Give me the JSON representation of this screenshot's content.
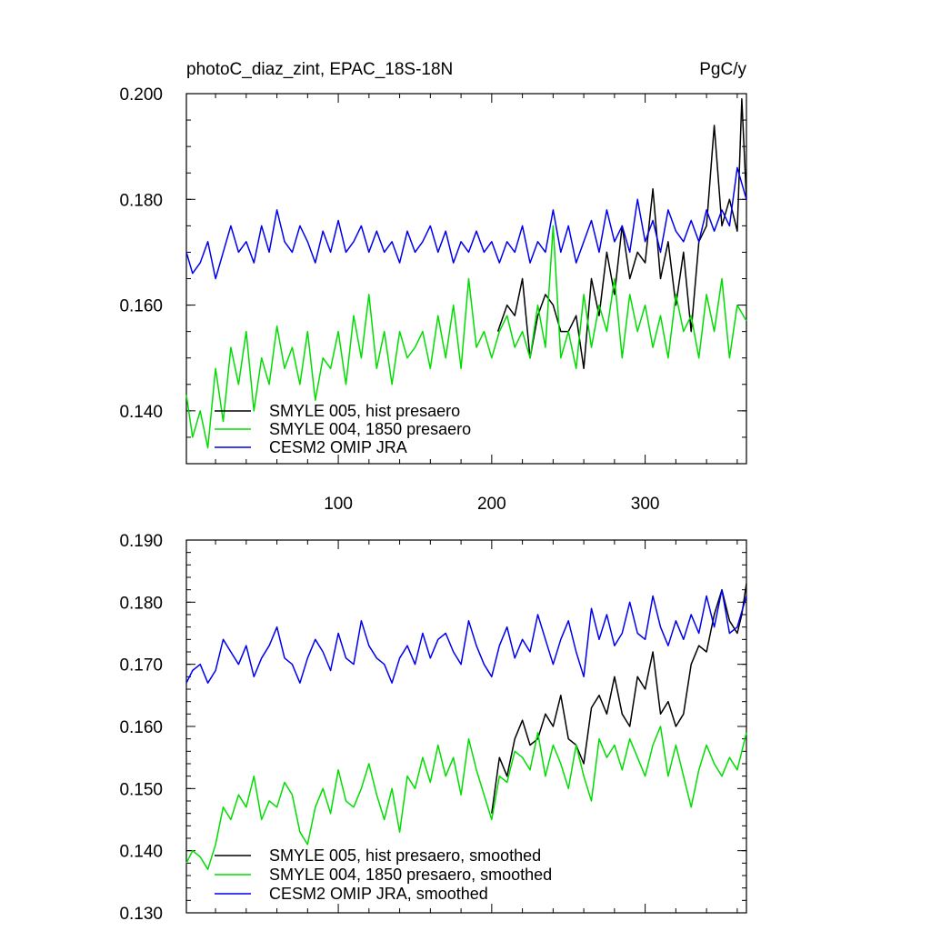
{
  "chart_data": [
    {
      "type": "line",
      "title": "photoC_diaz_zint, EPAC_18S-18N",
      "units": "PgC/y",
      "xlim": [
        1,
        366
      ],
      "ylim": [
        0.13,
        0.2
      ],
      "xticks": [
        100,
        200,
        300
      ],
      "xtick_labels": [
        "100",
        "200",
        "300"
      ],
      "yticks": [
        0.14,
        0.16,
        0.18,
        0.2
      ],
      "ytick_labels": [
        "0.140",
        "0.160",
        "0.180",
        "0.200"
      ],
      "legend_position": "bottom-left",
      "grid": false,
      "series": [
        {
          "name": "SMYLE 005, hist presaero",
          "color": "#000000",
          "x": [
            204,
            210,
            215,
            220,
            225,
            230,
            235,
            240,
            245,
            250,
            255,
            260,
            265,
            270,
            275,
            280,
            285,
            290,
            295,
            300,
            305,
            310,
            315,
            320,
            325,
            330,
            335,
            340,
            345,
            350,
            355,
            360,
            363,
            366
          ],
          "values": [
            0.155,
            0.16,
            0.158,
            0.165,
            0.15,
            0.158,
            0.162,
            0.16,
            0.155,
            0.155,
            0.158,
            0.148,
            0.165,
            0.158,
            0.17,
            0.162,
            0.175,
            0.165,
            0.17,
            0.168,
            0.182,
            0.165,
            0.172,
            0.16,
            0.17,
            0.155,
            0.172,
            0.175,
            0.194,
            0.175,
            0.18,
            0.174,
            0.199,
            0.18
          ]
        },
        {
          "name": "SMYLE 004, 1850 presaero",
          "color": "#00dd00",
          "x": [
            1,
            5,
            10,
            15,
            20,
            25,
            30,
            35,
            40,
            45,
            50,
            55,
            60,
            65,
            70,
            75,
            80,
            85,
            90,
            95,
            100,
            105,
            110,
            115,
            120,
            125,
            130,
            135,
            140,
            145,
            150,
            155,
            160,
            165,
            170,
            175,
            180,
            185,
            190,
            195,
            200,
            205,
            210,
            215,
            220,
            225,
            230,
            235,
            240,
            245,
            250,
            255,
            260,
            265,
            270,
            275,
            280,
            285,
            290,
            295,
            300,
            305,
            310,
            315,
            320,
            325,
            330,
            335,
            340,
            345,
            350,
            355,
            360,
            366
          ],
          "values": [
            0.143,
            0.135,
            0.14,
            0.133,
            0.148,
            0.138,
            0.152,
            0.145,
            0.155,
            0.14,
            0.15,
            0.145,
            0.156,
            0.148,
            0.152,
            0.145,
            0.155,
            0.142,
            0.15,
            0.148,
            0.155,
            0.145,
            0.158,
            0.15,
            0.162,
            0.148,
            0.155,
            0.145,
            0.155,
            0.15,
            0.152,
            0.155,
            0.148,
            0.158,
            0.15,
            0.16,
            0.148,
            0.165,
            0.152,
            0.155,
            0.15,
            0.155,
            0.158,
            0.152,
            0.155,
            0.15,
            0.16,
            0.152,
            0.175,
            0.15,
            0.155,
            0.148,
            0.162,
            0.152,
            0.16,
            0.155,
            0.165,
            0.15,
            0.162,
            0.155,
            0.16,
            0.152,
            0.158,
            0.15,
            0.162,
            0.155,
            0.158,
            0.15,
            0.162,
            0.155,
            0.165,
            0.15,
            0.16,
            0.157
          ]
        },
        {
          "name": "CESM2 OMIP JRA",
          "color": "#0000ee",
          "x": [
            1,
            5,
            10,
            15,
            20,
            25,
            30,
            35,
            40,
            45,
            50,
            55,
            60,
            65,
            70,
            75,
            80,
            85,
            90,
            95,
            100,
            105,
            110,
            115,
            120,
            125,
            130,
            135,
            140,
            145,
            150,
            155,
            160,
            165,
            170,
            175,
            180,
            185,
            190,
            195,
            200,
            205,
            210,
            215,
            220,
            225,
            230,
            235,
            240,
            245,
            250,
            255,
            260,
            265,
            270,
            275,
            280,
            285,
            290,
            295,
            300,
            305,
            310,
            315,
            320,
            325,
            330,
            335,
            340,
            345,
            350,
            355,
            360,
            366
          ],
          "values": [
            0.17,
            0.166,
            0.168,
            0.172,
            0.165,
            0.17,
            0.175,
            0.17,
            0.172,
            0.168,
            0.175,
            0.17,
            0.178,
            0.172,
            0.17,
            0.175,
            0.172,
            0.168,
            0.174,
            0.17,
            0.176,
            0.17,
            0.172,
            0.175,
            0.17,
            0.174,
            0.17,
            0.172,
            0.168,
            0.174,
            0.17,
            0.172,
            0.175,
            0.17,
            0.174,
            0.168,
            0.172,
            0.17,
            0.174,
            0.17,
            0.172,
            0.168,
            0.172,
            0.17,
            0.175,
            0.168,
            0.172,
            0.17,
            0.178,
            0.17,
            0.175,
            0.168,
            0.172,
            0.176,
            0.17,
            0.178,
            0.172,
            0.175,
            0.17,
            0.18,
            0.172,
            0.176,
            0.17,
            0.178,
            0.174,
            0.172,
            0.176,
            0.172,
            0.178,
            0.174,
            0.178,
            0.175,
            0.186,
            0.18
          ]
        }
      ]
    },
    {
      "type": "line",
      "title": "",
      "xlim": [
        1,
        366
      ],
      "ylim": [
        0.13,
        0.19
      ],
      "xticks": [
        100,
        200,
        300
      ],
      "xtick_labels": [],
      "yticks": [
        0.13,
        0.14,
        0.15,
        0.16,
        0.17,
        0.18,
        0.19
      ],
      "ytick_labels": [
        "0.130",
        "0.140",
        "0.150",
        "0.160",
        "0.170",
        "0.180",
        "0.190"
      ],
      "legend_position": "bottom-left",
      "grid": false,
      "series": [
        {
          "name": "SMYLE 005, hist presaero, smoothed",
          "color": "#000000",
          "x": [
            200,
            205,
            210,
            215,
            220,
            225,
            230,
            235,
            240,
            245,
            250,
            255,
            260,
            265,
            270,
            275,
            280,
            285,
            290,
            295,
            300,
            305,
            310,
            315,
            320,
            325,
            330,
            335,
            340,
            345,
            350,
            355,
            360,
            363,
            366
          ],
          "values": [
            0.146,
            0.155,
            0.152,
            0.158,
            0.161,
            0.157,
            0.158,
            0.162,
            0.16,
            0.165,
            0.158,
            0.157,
            0.154,
            0.163,
            0.165,
            0.162,
            0.168,
            0.162,
            0.16,
            0.168,
            0.166,
            0.172,
            0.162,
            0.164,
            0.16,
            0.162,
            0.17,
            0.173,
            0.172,
            0.178,
            0.182,
            0.177,
            0.175,
            0.178,
            0.183
          ]
        },
        {
          "name": "SMYLE 004, 1850 presaero, smoothed",
          "color": "#00dd00",
          "x": [
            1,
            5,
            10,
            15,
            20,
            25,
            30,
            35,
            40,
            45,
            50,
            55,
            60,
            65,
            70,
            75,
            80,
            85,
            90,
            95,
            100,
            105,
            110,
            115,
            120,
            125,
            130,
            135,
            140,
            145,
            150,
            155,
            160,
            165,
            170,
            175,
            180,
            185,
            190,
            195,
            200,
            205,
            210,
            215,
            220,
            225,
            230,
            235,
            240,
            245,
            250,
            255,
            260,
            265,
            270,
            275,
            280,
            285,
            290,
            295,
            300,
            305,
            310,
            315,
            320,
            325,
            330,
            335,
            340,
            345,
            350,
            355,
            360,
            366
          ],
          "values": [
            0.138,
            0.14,
            0.139,
            0.137,
            0.141,
            0.147,
            0.145,
            0.149,
            0.147,
            0.152,
            0.145,
            0.148,
            0.147,
            0.151,
            0.149,
            0.143,
            0.141,
            0.147,
            0.15,
            0.146,
            0.153,
            0.148,
            0.147,
            0.15,
            0.154,
            0.149,
            0.145,
            0.15,
            0.143,
            0.152,
            0.15,
            0.155,
            0.151,
            0.157,
            0.152,
            0.155,
            0.149,
            0.158,
            0.153,
            0.149,
            0.145,
            0.152,
            0.151,
            0.156,
            0.155,
            0.153,
            0.159,
            0.152,
            0.157,
            0.154,
            0.15,
            0.157,
            0.152,
            0.148,
            0.158,
            0.155,
            0.157,
            0.153,
            0.158,
            0.155,
            0.152,
            0.157,
            0.16,
            0.152,
            0.157,
            0.152,
            0.147,
            0.153,
            0.157,
            0.154,
            0.152,
            0.155,
            0.153,
            0.159
          ]
        },
        {
          "name": "CESM2 OMIP JRA, smoothed",
          "color": "#0000ee",
          "x": [
            1,
            5,
            10,
            15,
            20,
            25,
            30,
            35,
            40,
            45,
            50,
            55,
            60,
            65,
            70,
            75,
            80,
            85,
            90,
            95,
            100,
            105,
            110,
            115,
            120,
            125,
            130,
            135,
            140,
            145,
            150,
            155,
            160,
            165,
            170,
            175,
            180,
            185,
            190,
            195,
            200,
            205,
            210,
            215,
            220,
            225,
            230,
            235,
            240,
            245,
            250,
            255,
            260,
            265,
            270,
            275,
            280,
            285,
            290,
            295,
            300,
            305,
            310,
            315,
            320,
            325,
            330,
            335,
            340,
            345,
            350,
            355,
            360,
            366
          ],
          "values": [
            0.167,
            0.169,
            0.17,
            0.167,
            0.169,
            0.174,
            0.172,
            0.17,
            0.173,
            0.168,
            0.171,
            0.173,
            0.176,
            0.171,
            0.17,
            0.167,
            0.171,
            0.174,
            0.172,
            0.169,
            0.175,
            0.171,
            0.17,
            0.177,
            0.173,
            0.171,
            0.17,
            0.167,
            0.171,
            0.173,
            0.17,
            0.175,
            0.171,
            0.174,
            0.175,
            0.172,
            0.17,
            0.177,
            0.173,
            0.17,
            0.168,
            0.173,
            0.176,
            0.171,
            0.174,
            0.172,
            0.178,
            0.174,
            0.17,
            0.174,
            0.177,
            0.172,
            0.168,
            0.179,
            0.174,
            0.178,
            0.173,
            0.175,
            0.18,
            0.175,
            0.174,
            0.181,
            0.176,
            0.173,
            0.177,
            0.174,
            0.178,
            0.175,
            0.181,
            0.176,
            0.182,
            0.175,
            0.176,
            0.181
          ]
        }
      ]
    }
  ]
}
